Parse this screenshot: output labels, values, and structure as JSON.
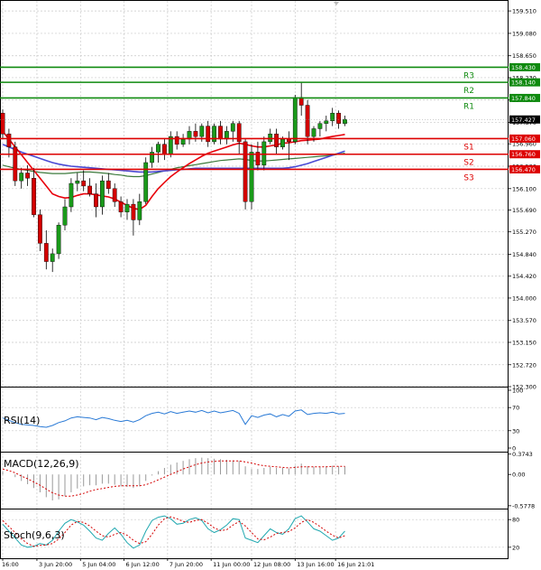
{
  "chart_data": {
    "type": "candlestick",
    "colors": {
      "up": "#1a9a1a",
      "down": "#d40000",
      "resistance": "#0f8a0f",
      "support": "#dd0000",
      "ma_fast": "#e8000b",
      "ma_mid": "#3c7a3c",
      "ma_slow": "#4a4ad4",
      "rsi": "#2a7ad6",
      "macd_hist": "#999999",
      "macd_signal": "#d40000",
      "stoch_k": "#20a8b0",
      "stoch_d": "#d40000"
    },
    "price_panel": {
      "ylim": [
        152.3,
        159.72
      ],
      "y_ticks": [
        "159.510",
        "159.080",
        "158.650",
        "158.230",
        "157.800",
        "157.370",
        "156.960",
        "156.530",
        "156.100",
        "155.690",
        "155.270",
        "154.840",
        "154.420",
        "154.000",
        "153.570",
        "153.150",
        "152.720",
        "152.300"
      ],
      "y_tick_values": [
        159.51,
        159.08,
        158.65,
        158.23,
        157.8,
        157.37,
        156.96,
        156.53,
        156.1,
        155.69,
        155.27,
        154.84,
        154.42,
        154.0,
        153.57,
        153.15,
        152.72,
        152.3
      ],
      "current_price": "157.427",
      "current_price_value": 157.427,
      "levels": [
        {
          "name": "R3",
          "value": 158.43,
          "label": "158.430",
          "kind": "resistance"
        },
        {
          "name": "R2",
          "value": 158.14,
          "label": "158.140",
          "kind": "resistance"
        },
        {
          "name": "R1",
          "value": 157.84,
          "label": "157.840",
          "kind": "resistance"
        },
        {
          "name": "S1",
          "value": 157.06,
          "label": "157.060",
          "kind": "support"
        },
        {
          "name": "S2",
          "value": 156.76,
          "label": "156.760",
          "kind": "support"
        },
        {
          "name": "S3",
          "value": 156.47,
          "label": "156.470",
          "kind": "support"
        }
      ],
      "candles": [
        [
          157.55,
          157.62,
          157.05,
          157.15
        ],
        [
          157.15,
          157.25,
          156.7,
          156.9
        ],
        [
          156.9,
          157.0,
          156.15,
          156.25
        ],
        [
          156.25,
          156.5,
          156.1,
          156.4
        ],
        [
          156.4,
          156.55,
          156.15,
          156.3
        ],
        [
          156.3,
          156.5,
          155.55,
          155.6
        ],
        [
          155.6,
          155.7,
          154.9,
          155.05
        ],
        [
          155.05,
          155.3,
          154.55,
          154.7
        ],
        [
          154.7,
          154.95,
          154.5,
          154.85
        ],
        [
          154.85,
          155.45,
          154.75,
          155.4
        ],
        [
          155.4,
          155.9,
          155.3,
          155.75
        ],
        [
          155.75,
          156.3,
          155.65,
          156.2
        ],
        [
          156.2,
          156.4,
          156.05,
          156.25
        ],
        [
          156.25,
          156.45,
          156.05,
          156.15
        ],
        [
          156.15,
          156.3,
          155.95,
          156.0
        ],
        [
          156.0,
          156.2,
          155.55,
          155.75
        ],
        [
          155.75,
          156.35,
          155.6,
          156.25
        ],
        [
          156.25,
          156.4,
          156.0,
          156.1
        ],
        [
          156.1,
          156.2,
          155.75,
          155.85
        ],
        [
          155.85,
          155.95,
          155.55,
          155.65
        ],
        [
          155.65,
          155.9,
          155.5,
          155.8
        ],
        [
          155.8,
          155.9,
          155.2,
          155.5
        ],
        [
          155.5,
          156.0,
          155.4,
          155.85
        ],
        [
          155.85,
          156.7,
          155.8,
          156.6
        ],
        [
          156.6,
          156.9,
          156.5,
          156.8
        ],
        [
          156.8,
          157.0,
          156.6,
          156.95
        ],
        [
          156.95,
          157.05,
          156.65,
          156.75
        ],
        [
          156.75,
          157.2,
          156.7,
          157.1
        ],
        [
          157.1,
          157.2,
          156.85,
          156.95
        ],
        [
          156.95,
          157.15,
          156.9,
          157.05
        ],
        [
          157.05,
          157.3,
          156.95,
          157.2
        ],
        [
          157.2,
          157.35,
          157.0,
          157.1
        ],
        [
          157.1,
          157.35,
          157.0,
          157.3
        ],
        [
          157.3,
          157.4,
          156.9,
          157.0
        ],
        [
          157.0,
          157.35,
          156.95,
          157.3
        ],
        [
          157.3,
          157.4,
          156.95,
          157.05
        ],
        [
          157.05,
          157.3,
          156.95,
          157.2
        ],
        [
          157.2,
          157.4,
          157.0,
          157.35
        ],
        [
          157.35,
          157.4,
          156.75,
          157.0
        ],
        [
          157.0,
          157.05,
          155.7,
          155.85
        ],
        [
          155.85,
          156.95,
          155.7,
          156.8
        ],
        [
          156.8,
          157.0,
          156.45,
          156.55
        ],
        [
          156.55,
          157.1,
          156.45,
          157.0
        ],
        [
          157.0,
          157.25,
          156.95,
          157.15
        ],
        [
          157.15,
          157.25,
          156.75,
          156.9
        ],
        [
          156.9,
          157.1,
          156.85,
          157.05
        ],
        [
          157.05,
          157.2,
          156.65,
          157.0
        ],
        [
          157.0,
          157.9,
          156.95,
          157.85
        ],
        [
          157.85,
          158.15,
          157.5,
          157.7
        ],
        [
          157.7,
          157.8,
          156.95,
          157.1
        ],
        [
          157.1,
          157.3,
          157.0,
          157.25
        ],
        [
          157.25,
          157.4,
          157.1,
          157.35
        ],
        [
          157.35,
          157.5,
          157.2,
          157.4
        ],
        [
          157.4,
          157.65,
          157.3,
          157.55
        ],
        [
          157.55,
          157.6,
          157.25,
          157.35
        ],
        [
          157.35,
          157.5,
          157.3,
          157.43
        ]
      ],
      "ma_fast": [
        157.2,
        157.05,
        156.9,
        156.75,
        156.6,
        156.45,
        156.3,
        156.15,
        156.0,
        155.95,
        155.92,
        155.93,
        155.97,
        156.0,
        156.0,
        155.98,
        155.96,
        155.94,
        155.9,
        155.84,
        155.78,
        155.72,
        155.7,
        155.78,
        155.95,
        156.1,
        156.22,
        156.33,
        156.42,
        156.5,
        156.58,
        156.65,
        156.72,
        156.78,
        156.82,
        156.86,
        156.9,
        156.94,
        156.97,
        156.95,
        156.92,
        156.9,
        156.9,
        156.92,
        156.94,
        156.97,
        156.98,
        157.0,
        157.02,
        157.03,
        157.04,
        157.05,
        157.08,
        157.1,
        157.12,
        157.14
      ],
      "ma_mid": [
        156.55,
        156.52,
        156.49,
        156.47,
        156.45,
        156.43,
        156.41,
        156.4,
        156.39,
        156.39,
        156.39,
        156.4,
        156.41,
        156.42,
        156.42,
        156.41,
        156.4,
        156.39,
        156.37,
        156.36,
        156.34,
        156.33,
        156.33,
        156.35,
        156.38,
        156.41,
        156.44,
        156.47,
        156.5,
        156.52,
        156.54,
        156.56,
        156.58,
        156.6,
        156.62,
        156.64,
        156.65,
        156.66,
        156.67,
        156.66,
        156.64,
        156.63,
        156.63,
        156.64,
        156.65,
        156.66,
        156.67,
        156.68,
        156.69,
        156.7,
        156.71,
        156.72,
        156.73,
        156.74,
        156.76,
        156.78
      ],
      "ma_slow": [
        156.95,
        156.9,
        156.85,
        156.8,
        156.76,
        156.72,
        156.68,
        156.64,
        156.6,
        156.57,
        156.55,
        156.53,
        156.52,
        156.51,
        156.5,
        156.49,
        156.48,
        156.47,
        156.46,
        156.45,
        156.44,
        156.43,
        156.42,
        156.42,
        156.42,
        156.43,
        156.44,
        156.45,
        156.46,
        156.47,
        156.48,
        156.49,
        156.49,
        156.49,
        156.49,
        156.49,
        156.49,
        156.49,
        156.49,
        156.49,
        156.49,
        156.49,
        156.49,
        156.49,
        156.49,
        156.49,
        156.5,
        156.52,
        156.55,
        156.58,
        156.62,
        156.66,
        156.7,
        156.74,
        156.78,
        156.82
      ]
    },
    "rsi_panel": {
      "label": "RSI(14)",
      "ylim": [
        0,
        100
      ],
      "y_ticks": [
        "100",
        "70",
        "30",
        "0"
      ],
      "y_tick_values": [
        100,
        70,
        30,
        0
      ],
      "values": [
        52,
        48,
        44,
        41,
        40,
        39,
        37,
        36,
        39,
        44,
        47,
        52,
        54,
        53,
        52,
        49,
        53,
        51,
        48,
        46,
        48,
        45,
        49,
        56,
        60,
        62,
        59,
        63,
        60,
        62,
        64,
        62,
        65,
        61,
        64,
        61,
        63,
        65,
        60,
        41,
        56,
        53,
        57,
        59,
        54,
        58,
        55,
        64,
        66,
        58,
        60,
        61,
        60,
        62,
        59,
        60
      ]
    },
    "macd_panel": {
      "label": "MACD(12,26,9)",
      "ylim": [
        -0.63,
        0.42
      ],
      "y_ticks": [
        "0.3743",
        "0.00",
        "-0.5778"
      ],
      "y_tick_values": [
        0.3743,
        0.0,
        -0.5778
      ],
      "histogram": [
        0.05,
        0.0,
        -0.05,
        -0.12,
        -0.18,
        -0.25,
        -0.33,
        -0.42,
        -0.48,
        -0.46,
        -0.4,
        -0.33,
        -0.26,
        -0.22,
        -0.2,
        -0.2,
        -0.17,
        -0.17,
        -0.19,
        -0.22,
        -0.23,
        -0.25,
        -0.22,
        -0.12,
        -0.02,
        0.06,
        0.12,
        0.18,
        0.22,
        0.25,
        0.28,
        0.3,
        0.31,
        0.3,
        0.29,
        0.28,
        0.27,
        0.26,
        0.25,
        0.15,
        0.1,
        0.1,
        0.12,
        0.14,
        0.12,
        0.12,
        0.11,
        0.16,
        0.2,
        0.15,
        0.14,
        0.14,
        0.15,
        0.16,
        0.15,
        0.15
      ],
      "signal": [
        0.1,
        0.07,
        0.03,
        -0.03,
        -0.08,
        -0.14,
        -0.2,
        -0.27,
        -0.34,
        -0.38,
        -0.4,
        -0.4,
        -0.38,
        -0.35,
        -0.31,
        -0.28,
        -0.26,
        -0.24,
        -0.22,
        -0.21,
        -0.21,
        -0.21,
        -0.21,
        -0.19,
        -0.15,
        -0.1,
        -0.05,
        0.0,
        0.05,
        0.1,
        0.14,
        0.18,
        0.21,
        0.23,
        0.24,
        0.25,
        0.25,
        0.25,
        0.25,
        0.23,
        0.21,
        0.18,
        0.16,
        0.15,
        0.14,
        0.13,
        0.12,
        0.13,
        0.14,
        0.14,
        0.14,
        0.14,
        0.14,
        0.15,
        0.15,
        0.15
      ]
    },
    "stoch_panel": {
      "label": "Stoch(9,6,3)",
      "ylim": [
        0,
        100
      ],
      "y_ticks": [
        "80",
        "20"
      ],
      "y_tick_values": [
        80,
        20
      ],
      "k": [
        70,
        55,
        40,
        25,
        20,
        22,
        28,
        25,
        35,
        55,
        72,
        80,
        75,
        68,
        55,
        40,
        35,
        50,
        62,
        48,
        30,
        18,
        25,
        55,
        78,
        85,
        88,
        82,
        70,
        72,
        80,
        84,
        78,
        60,
        52,
        58,
        68,
        82,
        80,
        40,
        35,
        30,
        45,
        60,
        52,
        48,
        60,
        82,
        88,
        75,
        60,
        55,
        45,
        35,
        40,
        55
      ],
      "d": [
        78,
        65,
        52,
        38,
        28,
        22,
        24,
        25,
        28,
        38,
        52,
        68,
        76,
        74,
        66,
        55,
        45,
        42,
        48,
        52,
        46,
        35,
        28,
        32,
        48,
        68,
        82,
        86,
        82,
        76,
        74,
        78,
        80,
        72,
        62,
        56,
        58,
        68,
        76,
        66,
        52,
        38,
        36,
        42,
        50,
        52,
        54,
        62,
        74,
        80,
        74,
        65,
        55,
        46,
        40,
        45
      ]
    },
    "x_tick_labels": [
      "16:00",
      "3 Jun 20:00",
      "5 Jun 04:00",
      "6 Jun 12:00",
      "7 Jun 20:00",
      "11 Jun 00:00",
      "12 Jun 08:00",
      "13 Jun 16:00",
      "16 Jun 21:01"
    ],
    "x_tick_indices": [
      0,
      5.5,
      12.5,
      19.5,
      26.5,
      33.5,
      40,
      47,
      53.5
    ]
  }
}
